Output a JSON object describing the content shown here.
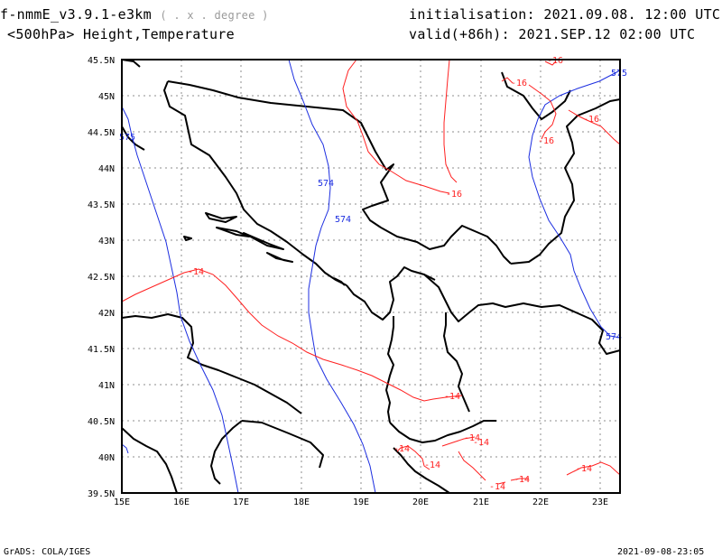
{
  "header": {
    "model": "f-nmmE_v3.9.1-e3km",
    "projection": "( . x . degree )",
    "field": "<500hPa> Height,Temperature",
    "init_label": "initialisation:",
    "init_value": "2021.09.08.  12:00 UTC",
    "valid_label": "valid(+86h):",
    "valid_value": "2021.SEP.12 02:00 UTC"
  },
  "footer": {
    "left": "GrADS: COLA/IGES",
    "right": "2021-09-08-23:05"
  },
  "axes": {
    "lon_ticks": [
      "15E",
      "16E",
      "17E",
      "18E",
      "19E",
      "20E",
      "21E",
      "22E",
      "23E"
    ],
    "lat_ticks": [
      "39.5N",
      "40N",
      "40.5N",
      "41N",
      "41.5N",
      "42N",
      "42.5N",
      "43N",
      "43.5N",
      "44N",
      "44.5N",
      "45N",
      "45.5N"
    ]
  },
  "contours": {
    "height_labels": [
      "575",
      "574",
      "574",
      "575",
      "574"
    ],
    "temperature_labels": [
      "-16",
      "-16",
      "-16",
      "-16",
      "-16",
      "-14",
      "-14",
      "-14",
      "-14",
      "-14",
      "-14",
      "-14",
      "-14",
      "-14"
    ]
  },
  "colors": {
    "height": "#1c2ee0",
    "temperature": "#ff2020",
    "border": "#000000",
    "grid": "#8c8c8c"
  }
}
